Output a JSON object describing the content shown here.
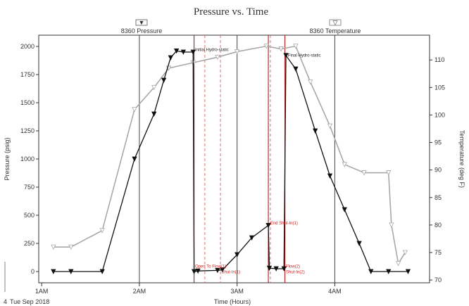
{
  "chart_data": {
    "type": "line",
    "title": "Pressure vs. Time",
    "xlabel": "Time (Hours)",
    "ylabel_left": "Pressure (psig)",
    "ylabel_right": "Temperature (deg F)",
    "date_label": "Tue Sep 2018",
    "date_label_prefix": "4",
    "x_ticks": [
      "1AM",
      "2AM",
      "3AM",
      "4AM"
    ],
    "y_left_ticks": [
      "0",
      "250",
      "500",
      "750",
      "1000",
      "1250",
      "1500",
      "1750",
      "2000"
    ],
    "y_right_ticks": [
      "70",
      "75",
      "80",
      "85",
      "90",
      "95",
      "100",
      "105",
      "110"
    ],
    "ylim_left": [
      -100,
      2100
    ],
    "ylim_right": [
      69.5,
      114.5
    ],
    "xlim": [
      0.97,
      4.97
    ],
    "grid": true,
    "legend": [
      {
        "name": "8360 Pressure",
        "marker": "▼",
        "color": "#111111"
      },
      {
        "name": "8360 Temperature",
        "marker": "▽",
        "color": "#a8a8a8"
      }
    ],
    "series": [
      {
        "name": "8360 Pressure",
        "axis": "left",
        "color": "#111111",
        "marker": "down-triangle",
        "points": [
          [
            1.12,
            0
          ],
          [
            1.3,
            0
          ],
          [
            1.62,
            0
          ],
          [
            1.95,
            1000
          ],
          [
            2.15,
            1400
          ],
          [
            2.25,
            1700
          ],
          [
            2.32,
            1900
          ],
          [
            2.38,
            1960
          ],
          [
            2.45,
            1950
          ],
          [
            2.55,
            1950
          ],
          [
            2.56,
            0
          ],
          [
            2.6,
            5
          ],
          [
            2.8,
            10
          ],
          [
            2.85,
            15
          ],
          [
            3.0,
            150
          ],
          [
            3.15,
            300
          ],
          [
            3.32,
            410
          ],
          [
            3.33,
            30
          ],
          [
            3.4,
            25
          ],
          [
            3.48,
            25
          ],
          [
            3.5,
            1920
          ],
          [
            3.6,
            1800
          ],
          [
            3.8,
            1250
          ],
          [
            3.95,
            850
          ],
          [
            4.1,
            550
          ],
          [
            4.25,
            250
          ],
          [
            4.37,
            0
          ],
          [
            4.55,
            0
          ],
          [
            4.75,
            0
          ]
        ]
      },
      {
        "name": "8360 Temperature",
        "axis": "right",
        "color": "#a8a8a8",
        "marker": "down-triangle-open",
        "points": [
          [
            1.12,
            76
          ],
          [
            1.3,
            76
          ],
          [
            1.62,
            79
          ],
          [
            1.95,
            101
          ],
          [
            2.15,
            105
          ],
          [
            2.3,
            108.5
          ],
          [
            2.55,
            109.5
          ],
          [
            2.8,
            110.5
          ],
          [
            3.0,
            111.5
          ],
          [
            3.3,
            112.5
          ],
          [
            3.45,
            112
          ],
          [
            3.6,
            112.5
          ],
          [
            3.75,
            106
          ],
          [
            3.95,
            98
          ],
          [
            4.1,
            91
          ],
          [
            4.3,
            89.5
          ],
          [
            4.55,
            89.5
          ],
          [
            4.58,
            80
          ],
          [
            4.65,
            73
          ],
          [
            4.72,
            75
          ]
        ]
      }
    ],
    "markers": [
      {
        "x": 2.56,
        "color": "#b00000",
        "style": "solid"
      },
      {
        "x": 2.67,
        "color": "#e07070",
        "style": "dash"
      },
      {
        "x": 2.83,
        "color": "#e07070",
        "style": "dash"
      },
      {
        "x": 3.32,
        "color": "#b00000",
        "style": "solid"
      },
      {
        "x": 3.34,
        "color": "#e07070",
        "style": "dash"
      },
      {
        "x": 3.49,
        "color": "#b00000",
        "style": "solid"
      }
    ],
    "annotations": [
      {
        "text": "Initial Hydro-static",
        "x": 2.57,
        "y": 1960,
        "color": "#222222"
      },
      {
        "text": "Final Hydro-static",
        "x": 3.52,
        "y": 1910,
        "color": "#222222"
      },
      {
        "text": "End Shut-In(1)",
        "x": 3.34,
        "y": 420,
        "color": "#d42020"
      },
      {
        "text": "Open To Flow(1)",
        "x": 2.57,
        "y": 35,
        "color": "#d42020"
      },
      {
        "text": "Shut-In(1)",
        "x": 2.84,
        "y": -15,
        "color": "#d42020"
      },
      {
        "text": "Flow(2)",
        "x": 3.5,
        "y": 35,
        "color": "#d42020"
      },
      {
        "text": "Shut-In(2)",
        "x": 3.5,
        "y": -15,
        "color": "#d42020"
      }
    ]
  }
}
